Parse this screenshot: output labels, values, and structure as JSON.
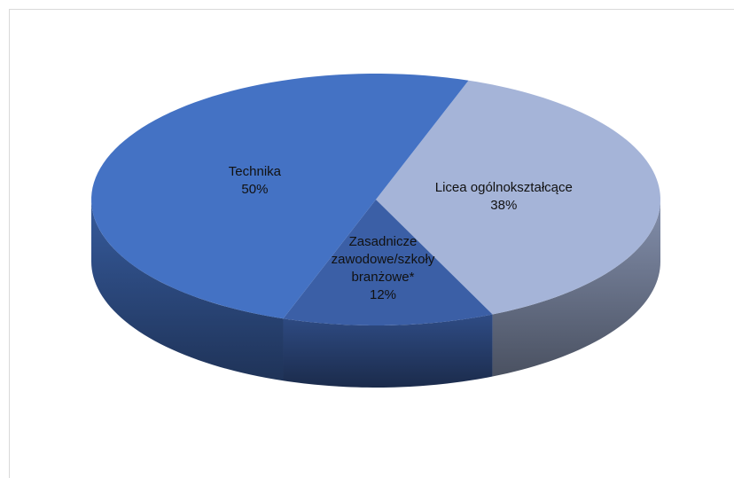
{
  "chart_data": {
    "type": "pie",
    "categories": [
      "Licea ogólnokształcące",
      "Zasadnicze zawodowe/szkoły branżowe*",
      "Technika"
    ],
    "values": [
      38,
      12,
      50
    ],
    "value_labels": [
      "38%",
      "12%",
      "50%"
    ],
    "colors": [
      "#a5b4d8",
      "#3b5fa6",
      "#4472c4"
    ]
  }
}
